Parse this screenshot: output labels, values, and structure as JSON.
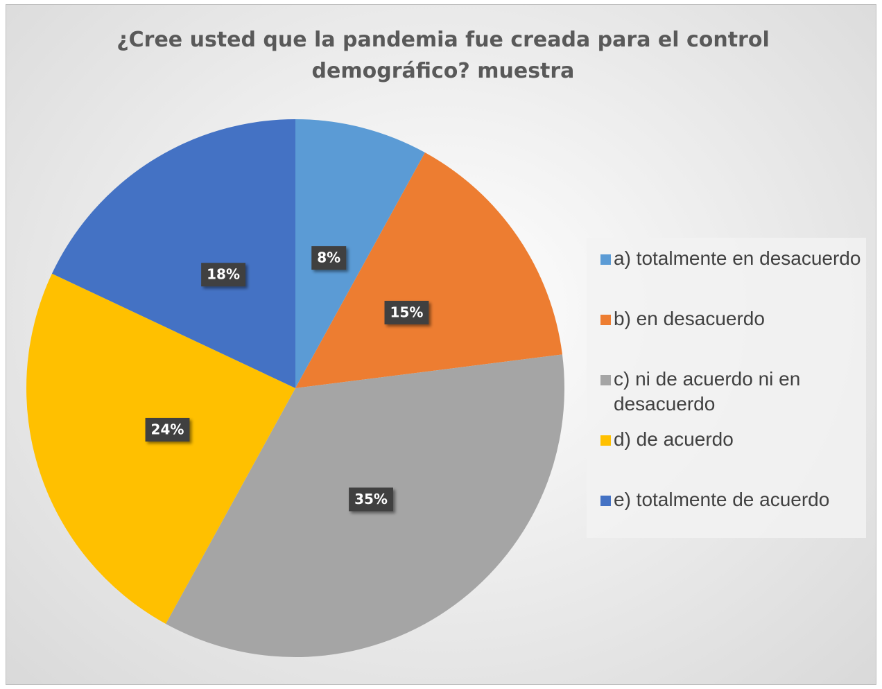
{
  "chart_data": {
    "type": "pie",
    "title": "¿Cree usted que la pandemia fue creada para el control demográfico? muestra",
    "categories": [
      "a) totalmente en desacuerdo",
      "b) en desacuerdo",
      "c) ni de acuerdo ni en desacuerdo",
      "d) de acuerdo",
      "e) totalmente de acuerdo"
    ],
    "values": [
      8,
      15,
      35,
      24,
      18
    ],
    "value_labels": [
      "8%",
      "15%",
      "35%",
      "24%",
      "18%"
    ],
    "colors": [
      "#5b9bd5",
      "#ed7d31",
      "#a5a5a5",
      "#ffc000",
      "#4472c4"
    ],
    "legend": "right"
  }
}
